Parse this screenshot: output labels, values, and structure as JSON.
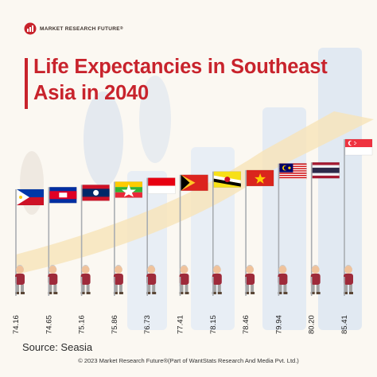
{
  "brand": {
    "logo_text": "MARKET RESEARCH FUTURE",
    "registered": "®"
  },
  "title": "Life Expectancies in Southeast Asia in 2040",
  "source": "Source: Seasia",
  "footer": "© 2023 Market Research Future®(Part of WantStats Research And Media Pvt. Ltd.)",
  "colors": {
    "title": "#c8232c",
    "background": "#fbf8f2",
    "bar_bg": "#e6ecf3",
    "arrow": "#f7e3b8",
    "pole": "#a9adb2",
    "figure_shirt": "#9e2a3a",
    "figure_skin": "#f0c29b",
    "figure_hair": "#c8c8c8"
  },
  "chart_data": {
    "type": "bar",
    "title": "Life Expectancies in Southeast Asia in 2040",
    "xlabel": "",
    "ylabel": "",
    "categories": [
      "Philippines",
      "Cambodia",
      "Laos",
      "Myanmar",
      "Indonesia",
      "Timor-Leste",
      "Brunei",
      "Vietnam",
      "Malaysia",
      "Thailand",
      "Singapore"
    ],
    "values": [
      74.16,
      74.65,
      75.16,
      75.86,
      76.73,
      77.41,
      78.15,
      78.46,
      79.94,
      80.2,
      85.41
    ],
    "labels": [
      "74.16",
      "74.65",
      "75.16",
      "75.86",
      "76.73",
      "77.41",
      "78.15",
      "78.46",
      "79.94",
      "80.20",
      "85.41"
    ],
    "flags": [
      "philippines-flag",
      "cambodia-flag",
      "laos-flag",
      "myanmar-flag",
      "indonesia-flag",
      "timor-leste-flag",
      "brunei-flag",
      "vietnam-flag",
      "malaysia-flag",
      "thailand-flag",
      "singapore-flag"
    ],
    "ylim": [
      70,
      86
    ]
  }
}
